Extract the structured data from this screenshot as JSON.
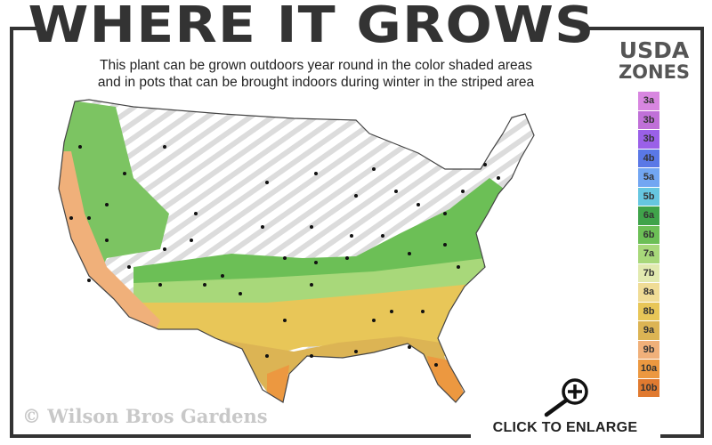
{
  "header": {
    "title": "WHERE IT GROWS",
    "subtitle_line1": "This plant can be grown outdoors year round in the color shaded areas",
    "subtitle_line2": "and in pots that can be brought indoors during winter in the striped area"
  },
  "legend": {
    "title_line1": "USDA",
    "title_line2": "ZONES",
    "zones": [
      {
        "label": "3a",
        "color": "#d886e0"
      },
      {
        "label": "3b",
        "color": "#c070d8"
      },
      {
        "label": "3b",
        "color": "#9a60e8"
      },
      {
        "label": "4b",
        "color": "#5a78e6"
      },
      {
        "label": "5a",
        "color": "#72a6f2"
      },
      {
        "label": "5b",
        "color": "#66c6e0"
      },
      {
        "label": "6a",
        "color": "#3fa34a"
      },
      {
        "label": "6b",
        "color": "#6cbf56"
      },
      {
        "label": "7a",
        "color": "#a8d87a"
      },
      {
        "label": "7b",
        "color": "#e2eab0"
      },
      {
        "label": "8a",
        "color": "#f0dc96"
      },
      {
        "label": "8b",
        "color": "#e8c658"
      },
      {
        "label": "9a",
        "color": "#dcb454"
      },
      {
        "label": "9b",
        "color": "#f0b07a"
      },
      {
        "label": "10a",
        "color": "#ec9840"
      },
      {
        "label": "10b",
        "color": "#e07a30"
      }
    ]
  },
  "watermark": "© Wilson Bros Gardens",
  "enlarge": {
    "label": "CLICK TO ENLARGE",
    "icon": "zoom-in-magnifier-icon"
  },
  "colors": {
    "frame": "#333333",
    "stripe": "#d8d8d8"
  }
}
